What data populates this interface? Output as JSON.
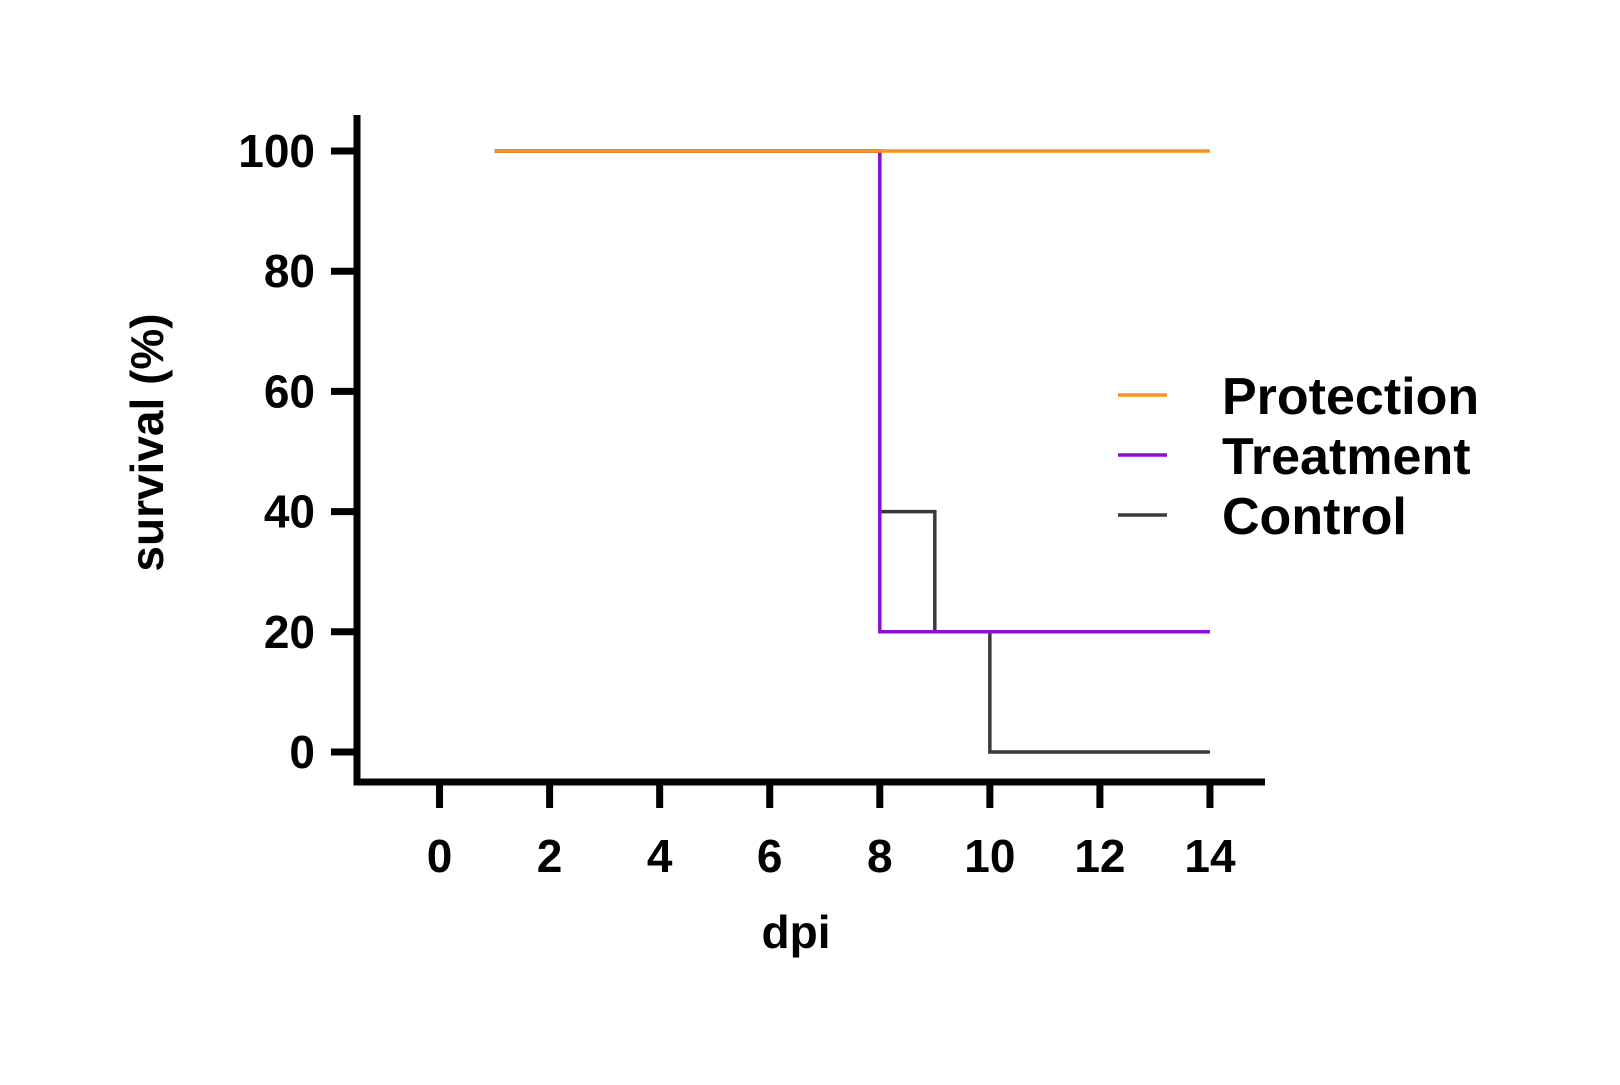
{
  "chart_data": {
    "type": "line",
    "step": true,
    "title": "",
    "xlabel": "dpi",
    "ylabel": "survival (%)",
    "xlim": [
      -1.5,
      15
    ],
    "ylim": [
      -5,
      106
    ],
    "xticks": [
      0,
      2,
      4,
      6,
      8,
      10,
      12,
      14
    ],
    "yticks": [
      0,
      20,
      40,
      60,
      80,
      100
    ],
    "xtick_labels": [
      "0",
      "2",
      "4",
      "6",
      "8",
      "10",
      "12",
      "14"
    ],
    "ytick_labels": [
      "0",
      "20",
      "40",
      "60",
      "80",
      "100"
    ],
    "grid": false,
    "legend_position": "right",
    "series": [
      {
        "name": "Protection",
        "color": "#F7941D",
        "x": [
          1,
          14
        ],
        "y": [
          100,
          100
        ]
      },
      {
        "name": "Treatment",
        "color": "#8B10D6",
        "x": [
          1,
          8,
          14
        ],
        "y": [
          100,
          20,
          20
        ]
      },
      {
        "name": "Control",
        "color": "#3A3A3C",
        "x": [
          1,
          8,
          9,
          10,
          14
        ],
        "y": [
          100,
          40,
          20,
          0,
          0
        ]
      }
    ]
  }
}
